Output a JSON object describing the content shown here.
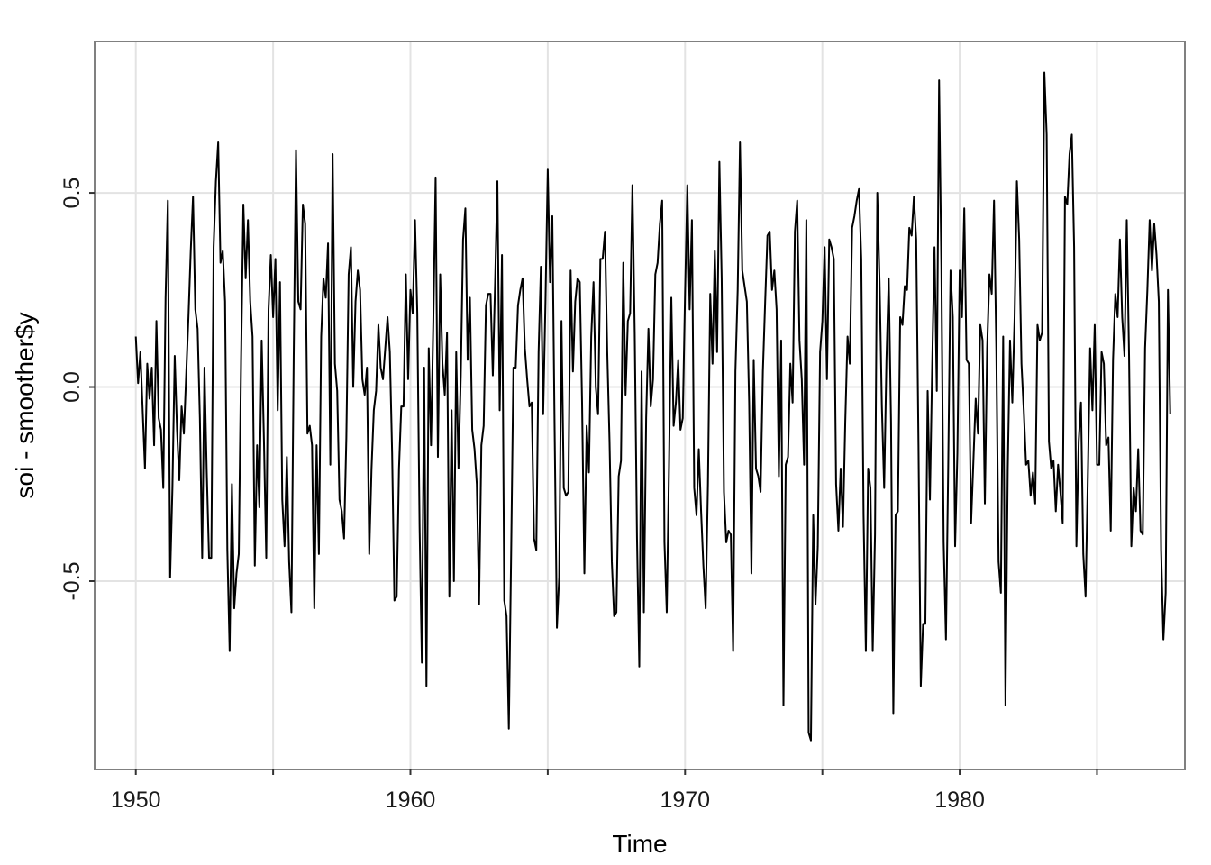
{
  "chart_data": {
    "type": "line",
    "title": "",
    "xlabel": "Time",
    "ylabel": "soi - smoother$y",
    "xlim": [
      1948.5,
      1988.2
    ],
    "ylim": [
      -0.985,
      0.89
    ],
    "x_ticks": [
      1950,
      1960,
      1970,
      1980
    ],
    "x_tick_labels": [
      "1950",
      "1960",
      "1970",
      "1980"
    ],
    "x_minor_ticks": [
      1955,
      1965,
      1975,
      1985
    ],
    "y_ticks": [
      -0.5,
      0.0,
      0.5
    ],
    "y_tick_labels": [
      "-0.5",
      "0.0",
      "0.5"
    ],
    "grid": true,
    "legend": "none",
    "x_start": 1950.0,
    "x_step_months": 1,
    "series": [
      {
        "values": [
          0.13,
          0.01,
          0.09,
          -0.06,
          -0.21,
          0.06,
          -0.03,
          0.05,
          -0.15,
          0.17,
          -0.08,
          -0.11,
          -0.26,
          0.23,
          0.48,
          -0.49,
          -0.26,
          0.08,
          -0.11,
          -0.24,
          -0.05,
          -0.12,
          0.03,
          0.18,
          0.35,
          0.49,
          0.2,
          0.15,
          -0.08,
          -0.44,
          0.05,
          -0.22,
          -0.44,
          -0.44,
          0.36,
          0.53,
          0.63,
          0.32,
          0.35,
          0.22,
          -0.42,
          -0.68,
          -0.25,
          -0.57,
          -0.48,
          -0.43,
          0.07,
          0.47,
          0.28,
          0.43,
          0.22,
          0.13,
          -0.46,
          -0.15,
          -0.31,
          0.12,
          -0.14,
          -0.44,
          0.2,
          0.34,
          0.18,
          0.33,
          -0.06,
          0.27,
          -0.29,
          -0.41,
          -0.18,
          -0.45,
          -0.58,
          0.08,
          0.61,
          0.22,
          0.2,
          0.47,
          0.42,
          -0.12,
          -0.1,
          -0.15,
          -0.57,
          -0.15,
          -0.43,
          0.13,
          0.28,
          0.23,
          0.37,
          -0.2,
          0.6,
          0.06,
          -0.01,
          -0.29,
          -0.32,
          -0.39,
          -0.13,
          0.29,
          0.36,
          0.0,
          0.22,
          0.3,
          0.25,
          0.02,
          -0.02,
          0.05,
          -0.43,
          -0.21,
          -0.06,
          -0.01,
          0.16,
          0.05,
          0.02,
          0.1,
          0.18,
          0.09,
          -0.17,
          -0.55,
          -0.54,
          -0.21,
          -0.05,
          -0.05,
          0.29,
          0.02,
          0.25,
          0.19,
          0.43,
          0.19,
          -0.36,
          -0.71,
          0.05,
          -0.77,
          0.1,
          -0.15,
          0.17,
          0.54,
          -0.18,
          0.29,
          0.06,
          -0.02,
          0.14,
          -0.54,
          -0.06,
          -0.5,
          0.09,
          -0.21,
          0.03,
          0.38,
          0.46,
          0.07,
          0.23,
          -0.11,
          -0.16,
          -0.25,
          -0.56,
          -0.15,
          -0.1,
          0.21,
          0.24,
          0.24,
          0.03,
          0.27,
          0.53,
          -0.06,
          0.34,
          -0.55,
          -0.59,
          -0.88,
          -0.43,
          0.05,
          0.05,
          0.21,
          0.25,
          0.28,
          0.1,
          0.02,
          -0.05,
          -0.04,
          -0.39,
          -0.42,
          0.09,
          0.31,
          -0.07,
          0.22,
          0.56,
          0.27,
          0.44,
          -0.11,
          -0.62,
          -0.49,
          0.17,
          -0.26,
          -0.28,
          -0.27,
          0.3,
          0.04,
          0.22,
          0.28,
          0.27,
          -0.04,
          -0.48,
          -0.1,
          -0.22,
          0.13,
          0.27,
          0.0,
          -0.07,
          0.33,
          0.33,
          0.4,
          0.09,
          -0.14,
          -0.45,
          -0.59,
          -0.58,
          -0.23,
          -0.19,
          0.32,
          -0.02,
          0.17,
          0.19,
          0.52,
          0.14,
          -0.39,
          -0.72,
          0.04,
          -0.58,
          -0.08,
          0.15,
          -0.05,
          0.02,
          0.29,
          0.32,
          0.42,
          0.48,
          -0.4,
          -0.58,
          -0.2,
          0.23,
          -0.1,
          -0.04,
          0.07,
          -0.11,
          -0.08,
          0.24,
          0.52,
          0.2,
          0.43,
          -0.26,
          -0.33,
          -0.16,
          -0.32,
          -0.46,
          -0.57,
          -0.25,
          0.24,
          0.06,
          0.35,
          0.09,
          0.58,
          0.28,
          -0.27,
          -0.4,
          -0.37,
          -0.38,
          -0.68,
          0.04,
          0.25,
          0.63,
          0.3,
          0.26,
          0.22,
          -0.04,
          -0.48,
          0.07,
          -0.21,
          -0.23,
          -0.27,
          0.04,
          0.22,
          0.39,
          0.4,
          0.25,
          0.3,
          0.2,
          -0.23,
          0.12,
          -0.82,
          -0.2,
          -0.18,
          0.06,
          -0.04,
          0.4,
          0.48,
          0.12,
          0.02,
          -0.2,
          0.43,
          -0.89,
          -0.91,
          -0.33,
          -0.56,
          -0.41,
          0.09,
          0.17,
          0.36,
          0.02,
          0.38,
          0.36,
          0.33,
          -0.25,
          -0.37,
          -0.21,
          -0.36,
          -0.09,
          0.13,
          0.06,
          0.41,
          0.44,
          0.48,
          0.51,
          0.33,
          -0.33,
          -0.68,
          -0.21,
          -0.26,
          -0.68,
          -0.38,
          0.5,
          0.27,
          -0.05,
          -0.26,
          0.07,
          0.28,
          -0.09,
          -0.84,
          -0.33,
          -0.32,
          0.18,
          0.16,
          0.26,
          0.25,
          0.41,
          0.39,
          0.49,
          0.38,
          -0.15,
          -0.77,
          -0.61,
          -0.61,
          -0.01,
          -0.29,
          0.06,
          0.36,
          -0.01,
          0.79,
          0.31,
          -0.4,
          -0.65,
          -0.2,
          0.3,
          0.18,
          -0.41,
          -0.17,
          0.3,
          0.18,
          0.46,
          0.07,
          0.06,
          -0.35,
          -0.19,
          -0.03,
          -0.12,
          0.16,
          0.12,
          -0.3,
          0.1,
          0.29,
          0.24,
          0.48,
          0.1,
          -0.45,
          -0.53,
          0.13,
          -0.82,
          -0.21,
          0.12,
          -0.04,
          0.18,
          0.53,
          0.38,
          0.06,
          -0.06,
          -0.2,
          -0.19,
          -0.28,
          -0.22,
          -0.3,
          0.16,
          0.12,
          0.14,
          0.81,
          0.65,
          -0.14,
          -0.21,
          -0.19,
          -0.32,
          -0.2,
          -0.27,
          -0.35,
          0.49,
          0.47,
          0.6,
          0.65,
          0.36,
          -0.41,
          -0.14,
          -0.04,
          -0.43,
          -0.54,
          -0.23,
          0.1,
          -0.06,
          0.16,
          -0.2,
          -0.2,
          0.09,
          0.06,
          -0.15,
          -0.13,
          -0.37,
          0.07,
          0.24,
          0.18,
          0.38,
          0.18,
          0.08,
          0.43,
          0.08,
          -0.41,
          -0.26,
          -0.32,
          -0.16,
          -0.37,
          -0.38,
          0.1,
          0.25,
          0.43,
          0.3,
          0.42,
          0.34,
          0.22,
          -0.42,
          -0.65,
          -0.53,
          0.25,
          -0.07
        ]
      }
    ]
  }
}
